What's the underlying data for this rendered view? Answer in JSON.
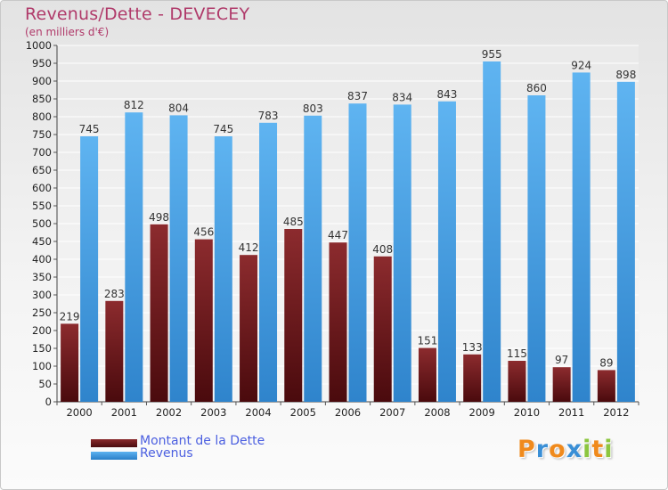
{
  "title": "Revenus/Dette - DEVECEY",
  "subtitle": "(en milliers d'€)",
  "colors": {
    "debt": "#7a1f22",
    "revenue": "#4aa3e6",
    "title": "#b03a6a",
    "legend_text": "#4b5fe0"
  },
  "chart_data": {
    "type": "bar",
    "title": "Revenus/Dette - DEVECEY",
    "subtitle": "(en milliers d'€)",
    "categories": [
      "2000",
      "2001",
      "2002",
      "2003",
      "2004",
      "2005",
      "2006",
      "2007",
      "2008",
      "2009",
      "2010",
      "2011",
      "2012"
    ],
    "series": [
      {
        "name": "Montant de la Dette",
        "values": [
          219,
          283,
          498,
          456,
          412,
          485,
          447,
          408,
          151,
          133,
          115,
          97,
          89
        ]
      },
      {
        "name": "Revenus",
        "values": [
          745,
          812,
          804,
          745,
          783,
          803,
          837,
          834,
          843,
          955,
          860,
          924,
          898
        ]
      }
    ],
    "ylim": [
      0,
      1000
    ],
    "ytick_step": 50,
    "grid": true,
    "legend": "bottom-left"
  },
  "legend": [
    {
      "label": "Montant de la Dette"
    },
    {
      "label": "Revenus"
    }
  ],
  "logo": {
    "text": "Proxiti",
    "letters": [
      "P",
      "r",
      "o",
      "x",
      "i",
      "t",
      "i"
    ],
    "letter_colors": [
      "#f08a1c",
      "#3a8fd6",
      "#f08a1c",
      "#3a8fd6",
      "#8cc63f",
      "#f08a1c",
      "#8cc63f"
    ]
  }
}
